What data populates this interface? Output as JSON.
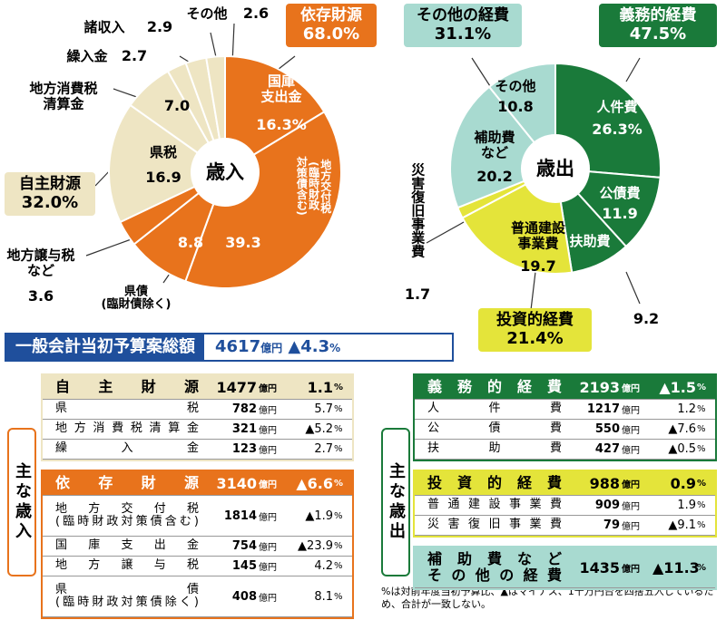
{
  "chart_data": [
    {
      "type": "pie",
      "center_label": "歳入",
      "categories": [
        "国庫\n支出金",
        "地方交付税\n(臨時財政\n対策債含む)",
        "県債\n(臨財債除く)",
        "地方譲与税\nなど",
        "県税",
        "地方消費税\n清算金",
        "繰入金",
        "諸収入",
        "その他"
      ],
      "values": [
        16.3,
        39.3,
        8.8,
        3.6,
        16.9,
        7.0,
        2.7,
        2.9,
        2.6
      ],
      "value_labels": [
        "16.3%",
        "39.3",
        "8.8",
        "3.6",
        "16.9",
        "7.0",
        "2.7",
        "2.9",
        "2.6"
      ],
      "colors": [
        "#e8731c",
        "#e8731c",
        "#e8731c",
        "#e8731c",
        "#eee5c3",
        "#eee5c3",
        "#eee5c3",
        "#eee5c3",
        "#eee5c3"
      ],
      "groups": [
        {
          "name": "依存財源",
          "value": 68.0,
          "value_label": "68.0%",
          "color": "#e8731c"
        },
        {
          "name": "自主財源",
          "value": 32.0,
          "value_label": "32.0%",
          "color": "#eee5c3"
        }
      ]
    },
    {
      "type": "pie",
      "center_label": "歳出",
      "categories": [
        "人件費",
        "公債費",
        "扶助費",
        "普通建設\n事業費",
        "災害復旧事業費",
        "補助費\nなど",
        "その他"
      ],
      "values": [
        26.3,
        11.9,
        9.2,
        19.7,
        1.7,
        20.2,
        10.8
      ],
      "value_labels": [
        "26.3%",
        "11.9",
        "9.2",
        "19.7",
        "1.7",
        "20.2",
        "10.8"
      ],
      "colors": [
        "#1a7a3a",
        "#1a7a3a",
        "#1a7a3a",
        "#e4e43a",
        "#e4e43a",
        "#a8dad0",
        "#a8dad0"
      ],
      "groups": [
        {
          "name": "その他の経費",
          "value": 31.1,
          "value_label": "31.1%",
          "color": "#a8dad0"
        },
        {
          "name": "義務的経費",
          "value": 47.5,
          "value_label": "47.5%",
          "color": "#1a7a3a"
        },
        {
          "name": "投資的経費",
          "value": 21.4,
          "value_label": "21.4%",
          "color": "#e4e43a"
        }
      ]
    }
  ],
  "summary": {
    "title": "一般会計当初予算案総額",
    "amount": "4617",
    "unit": "億円",
    "change": "▲4.3",
    "percent": "%"
  },
  "tables": [
    {
      "label": "主な歳入",
      "sections": [
        {
          "color": "#eee5c3",
          "rows": [
            [
              "自主財源",
              "1477",
              "億円",
              "1.1",
              "%"
            ],
            [
              "県税",
              "782",
              "億円",
              "5.7",
              "%"
            ],
            [
              "地方消費税清算金",
              "321",
              "億円",
              "▲5.2",
              "%"
            ],
            [
              "繰入金",
              "123",
              "億円",
              "2.7",
              "%"
            ]
          ]
        },
        {
          "color": "#e8731c",
          "rows": [
            [
              "依存財源",
              "3140",
              "億円",
              "▲6.6",
              "%"
            ],
            [
              "地方交付税\n(臨時財政対策債含む)",
              "1814",
              "億円",
              "▲1.9",
              "%"
            ],
            [
              "国庫支出金",
              "754",
              "億円",
              "▲23.9",
              "%"
            ],
            [
              "地方譲与税",
              "145",
              "億円",
              "4.2",
              "%"
            ],
            [
              "県債\n(臨時財政対策債除く)",
              "408",
              "億円",
              "8.1",
              "%"
            ]
          ]
        }
      ]
    },
    {
      "label": "主な歳出",
      "sections": [
        {
          "color": "#1a7a3a",
          "rows": [
            [
              "義務的経費",
              "2193",
              "億円",
              "▲1.5",
              "%"
            ],
            [
              "人件費",
              "1217",
              "億円",
              "1.2",
              "%"
            ],
            [
              "公債費",
              "550",
              "億円",
              "▲7.6",
              "%"
            ],
            [
              "扶助費",
              "427",
              "億円",
              "▲0.5",
              "%"
            ]
          ]
        },
        {
          "color": "#e4e43a",
          "rows": [
            [
              "投資的経費",
              "988",
              "億円",
              "0.9",
              "%"
            ],
            [
              "普通建設事業費",
              "909",
              "億円",
              "1.9",
              "%"
            ],
            [
              "災害復旧事業費",
              "79",
              "億円",
              "▲9.1",
              "%"
            ]
          ]
        },
        {
          "color": "#a8dad0",
          "rows": [
            [
              "補助費など\nその他の経費",
              "1435",
              "億円",
              "▲11.3",
              "%"
            ]
          ]
        }
      ]
    }
  ],
  "footnote": "%は対前年度当初予算比、▲はマイナス、1千万円台を四捨五入しているため、合計が一致しない。"
}
